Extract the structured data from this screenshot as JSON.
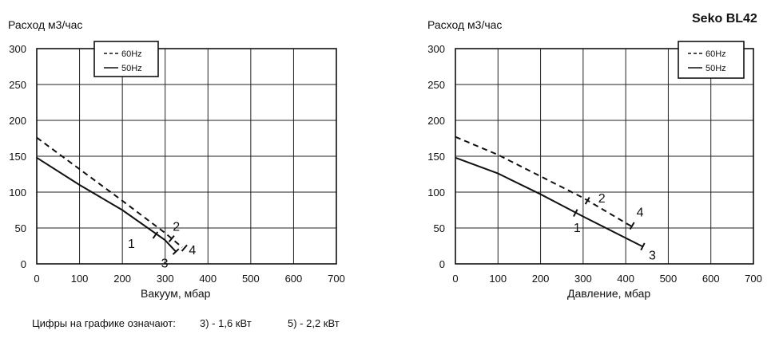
{
  "brand": "Seko BL42",
  "footnote": {
    "lead": "Цифры на графике означают:",
    "item_a": "3) - 1,6 кВт",
    "item_b": "5) - 2,2 кВт"
  },
  "chart_data": [
    {
      "type": "line",
      "ylabel": "Расход м3/час",
      "xlabel": "Вакуум, мбар",
      "xlim": [
        0,
        700
      ],
      "ylim": [
        0,
        300
      ],
      "x_ticks": [
        0,
        100,
        200,
        300,
        400,
        500,
        600,
        700
      ],
      "y_ticks": [
        0,
        50,
        100,
        150,
        200,
        250,
        300
      ],
      "grid": true,
      "legend_position": "top-left",
      "series": [
        {
          "name": "60Hz",
          "style": "dashed",
          "x": [
            0,
            100,
            200,
            300,
            340
          ],
          "y": [
            176,
            132,
            88,
            43,
            23
          ]
        },
        {
          "name": "50Hz",
          "style": "solid",
          "x": [
            0,
            100,
            200,
            300,
            325
          ],
          "y": [
            148,
            110,
            75,
            33,
            17
          ]
        }
      ],
      "markers": [
        {
          "label": "1",
          "x": 277,
          "y": 40,
          "series": "50Hz"
        },
        {
          "label": "3",
          "x": 325,
          "y": 17,
          "series": "50Hz"
        },
        {
          "label": "2",
          "x": 315,
          "y": 35,
          "series": "60Hz"
        },
        {
          "label": "4",
          "x": 345,
          "y": 22,
          "series": "60Hz"
        }
      ]
    },
    {
      "type": "line",
      "ylabel": "Расход м3/час",
      "xlabel": "Давление, мбар",
      "xlim": [
        0,
        700
      ],
      "ylim": [
        0,
        300
      ],
      "x_ticks": [
        0,
        100,
        200,
        300,
        400,
        500,
        600,
        700
      ],
      "y_ticks": [
        0,
        50,
        100,
        150,
        200,
        250,
        300
      ],
      "grid": true,
      "legend_position": "top-right",
      "series": [
        {
          "name": "60Hz",
          "style": "dashed",
          "x": [
            0,
            100,
            200,
            300,
            420
          ],
          "y": [
            177,
            152,
            122,
            92,
            50
          ]
        },
        {
          "name": "50Hz",
          "style": "solid",
          "x": [
            0,
            100,
            200,
            300,
            440
          ],
          "y": [
            148,
            126,
            97,
            66,
            24
          ]
        }
      ],
      "markers": [
        {
          "label": "1",
          "x": 282,
          "y": 71,
          "series": "50Hz"
        },
        {
          "label": "2",
          "x": 310,
          "y": 88,
          "series": "60Hz"
        },
        {
          "label": "4",
          "x": 415,
          "y": 53,
          "series": "60Hz"
        },
        {
          "label": "3",
          "x": 440,
          "y": 24,
          "series": "50Hz"
        }
      ]
    }
  ]
}
